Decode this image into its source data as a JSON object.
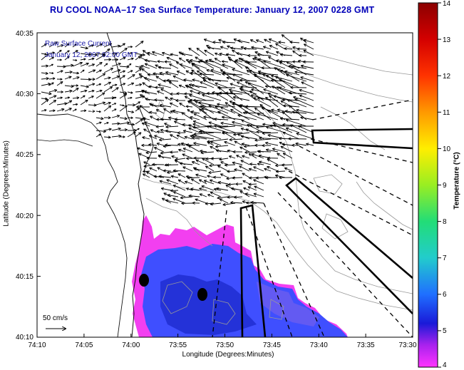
{
  "title": "RU COOL  NOAA–17  Sea Surface Temperature:  January 12, 2007 0228 GMT",
  "inset": {
    "line1": "Raw Surface Current",
    "line2": "January 12, 2007 02:00 GMT"
  },
  "scale_label": "50 cm/s",
  "axes": {
    "xlabel": "Longitude (Degrees:Minutes)",
    "ylabel": "Latitude (Degrees:Minutes)",
    "xticks": [
      "74:10",
      "74:05",
      "74:00",
      "73:55",
      "73:50",
      "73:45",
      "73:40",
      "73:35",
      "73:30"
    ],
    "yticks": [
      "40:35",
      "40:30",
      "40:25",
      "40:20",
      "40:15",
      "40:10"
    ]
  },
  "colorbar": {
    "label": "Temperature (°C)",
    "ticks": [
      "14",
      "13",
      "12",
      "11",
      "10",
      "9",
      "8",
      "7",
      "6",
      "5",
      "4"
    ],
    "colors": [
      "#8b0000",
      "#d40000",
      "#ff3300",
      "#ff9900",
      "#ffee00",
      "#99ee22",
      "#22dd77",
      "#22cccc",
      "#1f6fff",
      "#1a1ad8",
      "#ff33ff"
    ]
  },
  "map_features": {
    "stations": [
      "station-1",
      "station-2"
    ],
    "shipping_lanes": [
      "dashed-lanes",
      "solid-lanes"
    ]
  }
}
